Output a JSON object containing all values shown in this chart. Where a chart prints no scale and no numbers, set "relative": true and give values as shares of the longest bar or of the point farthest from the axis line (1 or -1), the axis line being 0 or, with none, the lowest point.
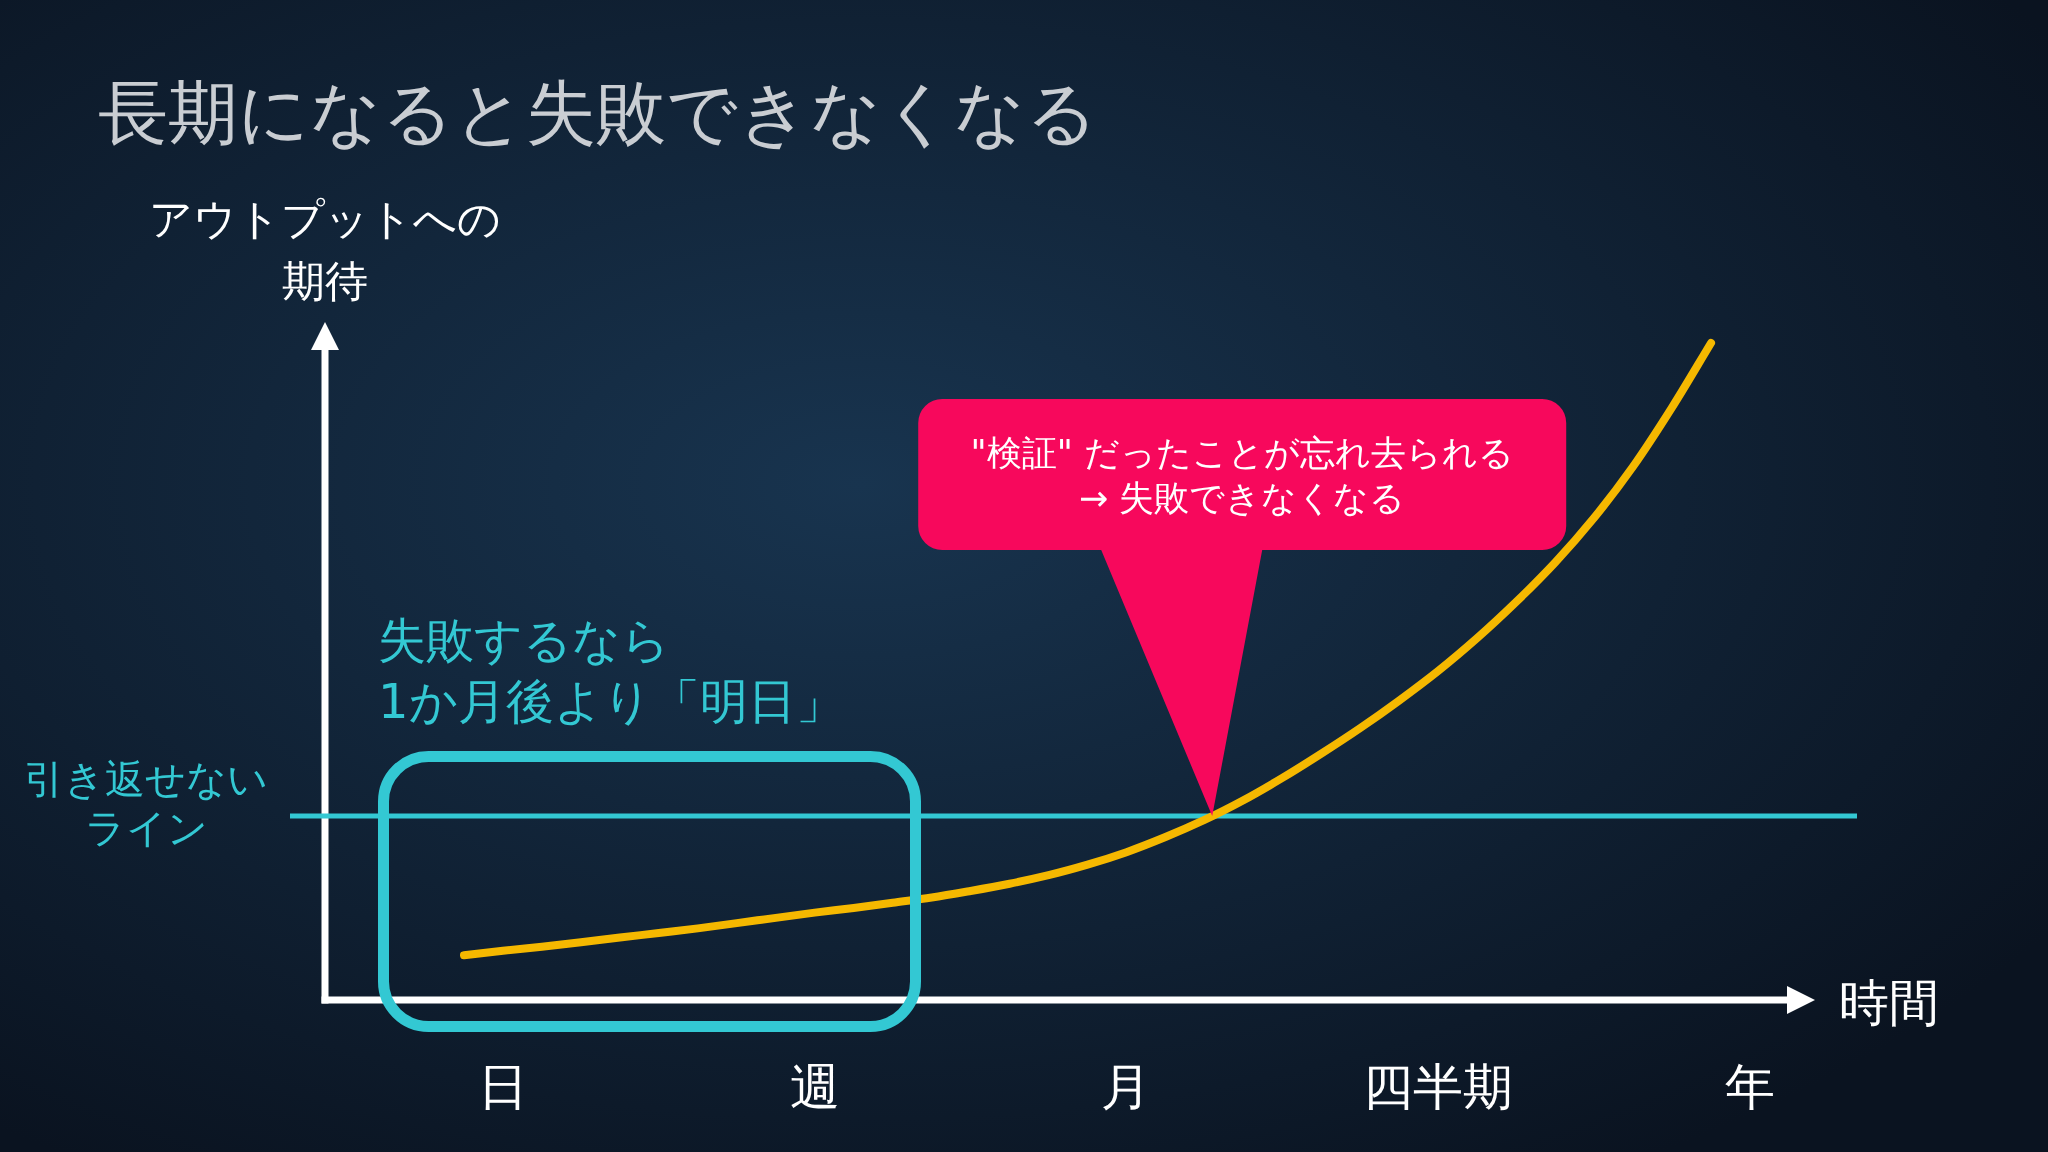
{
  "chart_data": {
    "type": "line",
    "title": "長期になると失敗できなくなる",
    "xlabel": "時間",
    "ylabel": "アウトプットへの期待",
    "relative": true,
    "categories": [
      null,
      "日",
      null,
      null,
      null,
      null,
      null,
      null,
      null,
      "週",
      null,
      null,
      null,
      null,
      null,
      null,
      null,
      "月",
      null,
      null,
      null,
      null,
      null,
      null,
      null,
      "四半期",
      null,
      null,
      null,
      null,
      null,
      null,
      null,
      "年"
    ],
    "values": [
      0.068,
      0.075,
      0.081,
      0.088,
      0.095,
      0.102,
      0.109,
      0.117,
      0.125,
      0.133,
      0.14,
      0.148,
      0.156,
      0.166,
      0.177,
      0.19,
      0.206,
      0.225,
      0.248,
      0.274,
      0.304,
      0.338,
      0.375,
      0.414,
      0.456,
      0.501,
      0.551,
      0.606,
      0.666,
      0.734,
      0.812,
      0.902,
      1,
      null
    ],
    "color": "#f5b800",
    "ref_lines": [
      {
        "axis": "y",
        "value": 0.28,
        "label": "引き返せないライン",
        "color": "#33c8d3"
      }
    ],
    "annotations": [
      "\"検証\" だったことが忘れ去られる→ 失敗できなくなる",
      "失敗するなら",
      "1か月後より「明日」"
    ]
  }
}
